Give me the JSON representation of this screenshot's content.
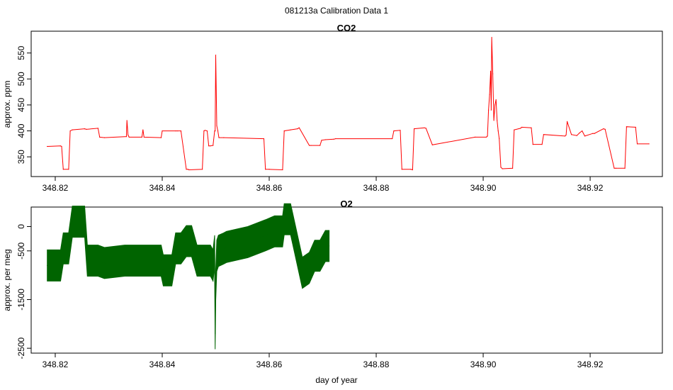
{
  "figure": {
    "title": "081213a   Calibration Data 1",
    "xlabel": "day of year"
  },
  "colors": {
    "co2": "#ff0000",
    "o2": "#006400"
  },
  "chart_data": [
    {
      "type": "line",
      "title": "CO2",
      "ylabel": "approx. ppm",
      "xlabel": "",
      "xlim": [
        348.8155,
        348.9335
      ],
      "ylim": [
        312,
        592
      ],
      "x_ticks": [
        348.82,
        348.84,
        348.86,
        348.88,
        348.9,
        348.92
      ],
      "x_tick_labels": [
        "348.82",
        "348.84",
        "348.86",
        "348.88",
        "348.90",
        "348.92"
      ],
      "y_ticks": [
        350,
        400,
        450,
        500,
        550
      ],
      "y_tick_labels": [
        "350",
        "400",
        "450",
        "500",
        "550"
      ],
      "series": [
        {
          "color": "#ff0000",
          "x": [
            348.8185,
            348.821,
            348.8212,
            348.8215,
            348.8225,
            348.8228,
            348.8232,
            348.8255,
            348.8258,
            348.828,
            348.8283,
            348.8292,
            348.8333,
            348.8334,
            348.8336,
            348.8338,
            348.8362,
            348.8364,
            348.8366,
            348.8398,
            348.84,
            348.8425,
            348.8428,
            348.8435,
            348.8445,
            348.8448,
            348.845,
            348.8475,
            348.8478,
            348.848,
            348.8484,
            348.8487,
            348.849,
            348.8495,
            348.8498,
            348.8499,
            348.85,
            348.8502,
            348.8504,
            348.8506,
            348.8515,
            348.859,
            348.8593,
            348.86,
            348.8625,
            348.8628,
            348.864,
            348.8653,
            348.8656,
            348.8675,
            348.8678,
            348.8695,
            348.8698,
            348.8705,
            348.8721,
            348.8724,
            348.883,
            348.8833,
            348.8845,
            348.8848,
            348.8865,
            348.8868,
            348.8871,
            348.889,
            348.8893,
            348.8905,
            348.8985,
            348.9006,
            348.9008,
            348.901,
            348.9012,
            348.9014,
            348.9015,
            348.9016,
            348.9018,
            348.902,
            348.9022,
            348.9024,
            348.9026,
            348.9028,
            348.903,
            348.9033,
            348.9036,
            348.9055,
            348.9058,
            348.907,
            348.9072,
            348.909,
            348.9093,
            348.911,
            348.9113,
            348.9153,
            348.9155,
            348.9157,
            348.9165,
            348.9175,
            348.918,
            348.9185,
            348.919,
            348.9205,
            348.9208,
            348.9225,
            348.9228,
            348.9245,
            348.9248,
            348.9265,
            348.9268,
            348.9285,
            348.9288,
            348.931
          ],
          "y": [
            370,
            371,
            370,
            326,
            326,
            400,
            402,
            404,
            403,
            405,
            388,
            387,
            389,
            420,
            392,
            388,
            388,
            402,
            388,
            387,
            400,
            400,
            400,
            400,
            326,
            326,
            325,
            326,
            400,
            401,
            400,
            371,
            371,
            372,
            400,
            400,
            546,
            410,
            400,
            387,
            387,
            385,
            326,
            326,
            325,
            400,
            402,
            404,
            406,
            372,
            372,
            372,
            382,
            383,
            384,
            385,
            385,
            400,
            401,
            326,
            326,
            325,
            404,
            406,
            405,
            373,
            388,
            388,
            390,
            440,
            470,
            515,
            440,
            580,
            510,
            420,
            450,
            460,
            420,
            400,
            385,
            330,
            327,
            328,
            402,
            405,
            407,
            406,
            374,
            374,
            393,
            390,
            392,
            418,
            393,
            391,
            396,
            400,
            390,
            395,
            395,
            404,
            403,
            328,
            328,
            328,
            408,
            407,
            375,
            375
          ]
        }
      ]
    },
    {
      "type": "line",
      "title": "O2",
      "ylabel": "approx. per meg",
      "xlabel": "day of year",
      "xlim": [
        348.8155,
        348.9335
      ],
      "ylim": [
        -2600,
        400
      ],
      "x_ticks": [
        348.82,
        348.84,
        348.86,
        348.88,
        348.9,
        348.92
      ],
      "x_tick_labels": [
        "348.82",
        "348.84",
        "348.86",
        "348.88",
        "348.90",
        "348.92"
      ],
      "y_ticks": [
        -2500,
        -1500,
        -500,
        0
      ],
      "y_tick_labels": [
        "-2500",
        "-1500",
        "-500",
        "0"
      ],
      "series": [
        {
          "color": "#006400",
          "x": [
            348.8185,
            348.821,
            348.8215,
            348.8225,
            348.8232,
            348.8255,
            348.826,
            348.828,
            348.8292,
            348.833,
            348.8362,
            348.8398,
            348.8402,
            348.8418,
            348.8425,
            348.8435,
            348.8445,
            348.8455,
            348.8465,
            348.8475,
            348.849,
            348.8495,
            348.8498,
            348.8499,
            348.85,
            348.8502,
            348.8505,
            348.8515,
            348.852,
            348.856,
            348.8593,
            348.861,
            348.8625,
            348.8628,
            348.864,
            348.8645,
            348.8662,
            348.8675,
            348.8685,
            348.8695,
            348.8705,
            348.8712
          ],
          "y": [
            -800,
            -800,
            -450,
            -450,
            100,
            100,
            -700,
            -700,
            -750,
            -700,
            -700,
            -700,
            -900,
            -900,
            -450,
            -450,
            -300,
            -300,
            -700,
            -700,
            -700,
            -800,
            -500,
            -2200,
            -1200,
            -600,
            -500,
            -450,
            -420,
            -320,
            -180,
            -100,
            -100,
            150,
            150,
            -100,
            -950,
            -850,
            -600,
            -600,
            -400,
            -400
          ],
          "band": [
            320,
            320,
            320,
            320,
            320,
            320,
            320,
            320,
            320,
            320,
            320,
            320,
            320,
            320,
            320,
            320,
            320,
            320,
            320,
            320,
            320,
            320,
            320,
            320,
            320,
            320,
            320,
            320,
            320,
            320,
            320,
            320,
            320,
            320,
            320,
            320,
            320,
            320,
            320,
            320,
            320,
            320
          ]
        }
      ]
    }
  ]
}
